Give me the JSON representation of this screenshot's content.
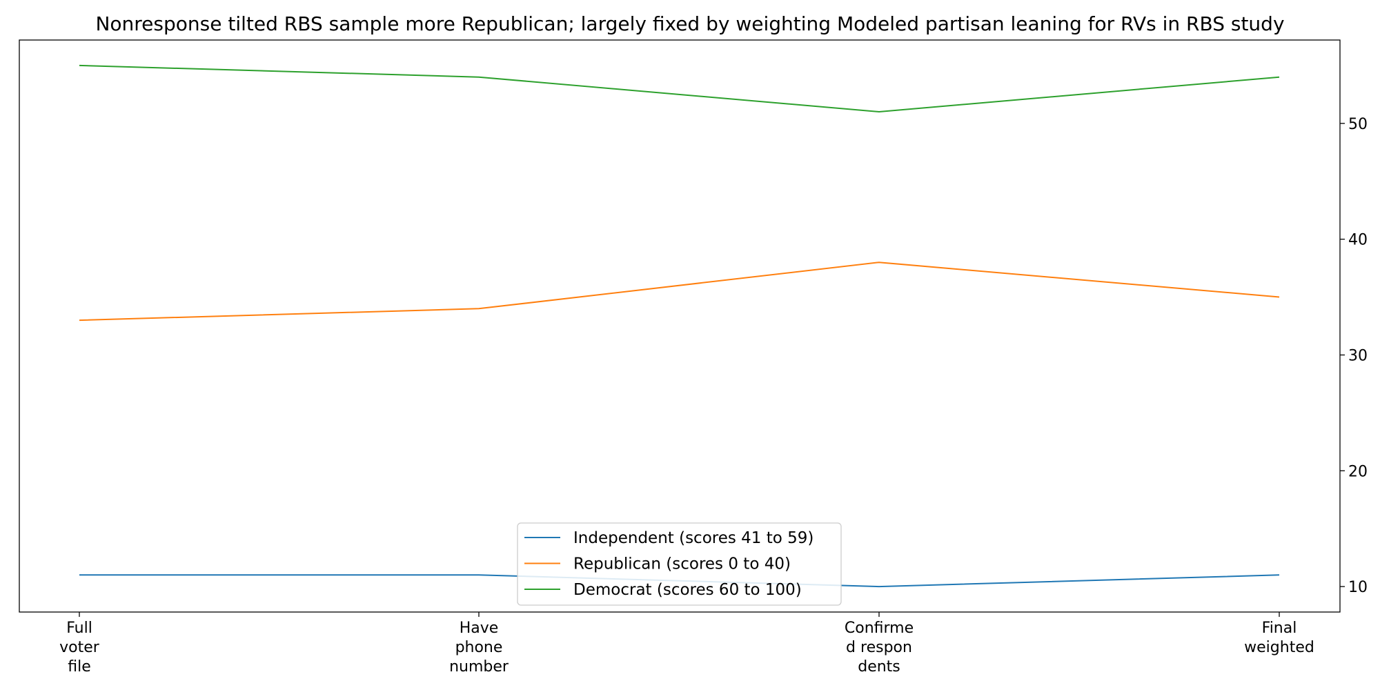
{
  "chart_data": {
    "type": "line",
    "title": "Nonresponse tilted RBS sample more Republican; largely fixed by weighting Modeled partisan leaning for RVs in RBS study",
    "xlabel": "",
    "ylabel": "",
    "categories": [
      [
        "Full",
        "voter",
        "file"
      ],
      [
        "Have",
        "phone",
        "number"
      ],
      [
        "Confirme",
        "d respon",
        "dents"
      ],
      [
        "Final",
        "weighted"
      ]
    ],
    "series": [
      {
        "name": "Independent (scores 41 to 59)",
        "values": [
          11,
          11,
          10,
          11
        ],
        "color": "#1f77b4"
      },
      {
        "name": "Republican (scores 0 to 40)",
        "values": [
          33,
          34,
          38,
          35
        ],
        "color": "#ff7f0e"
      },
      {
        "name": "Democrat (scores 60 to 100)",
        "values": [
          55,
          54,
          51,
          54
        ],
        "color": "#2ca02c"
      }
    ],
    "ylim": [
      7.8,
      57.2
    ],
    "yticks": [
      10,
      20,
      30,
      40,
      50
    ],
    "y_axis_side": "right",
    "grid": false,
    "legend_position": "lower center"
  }
}
